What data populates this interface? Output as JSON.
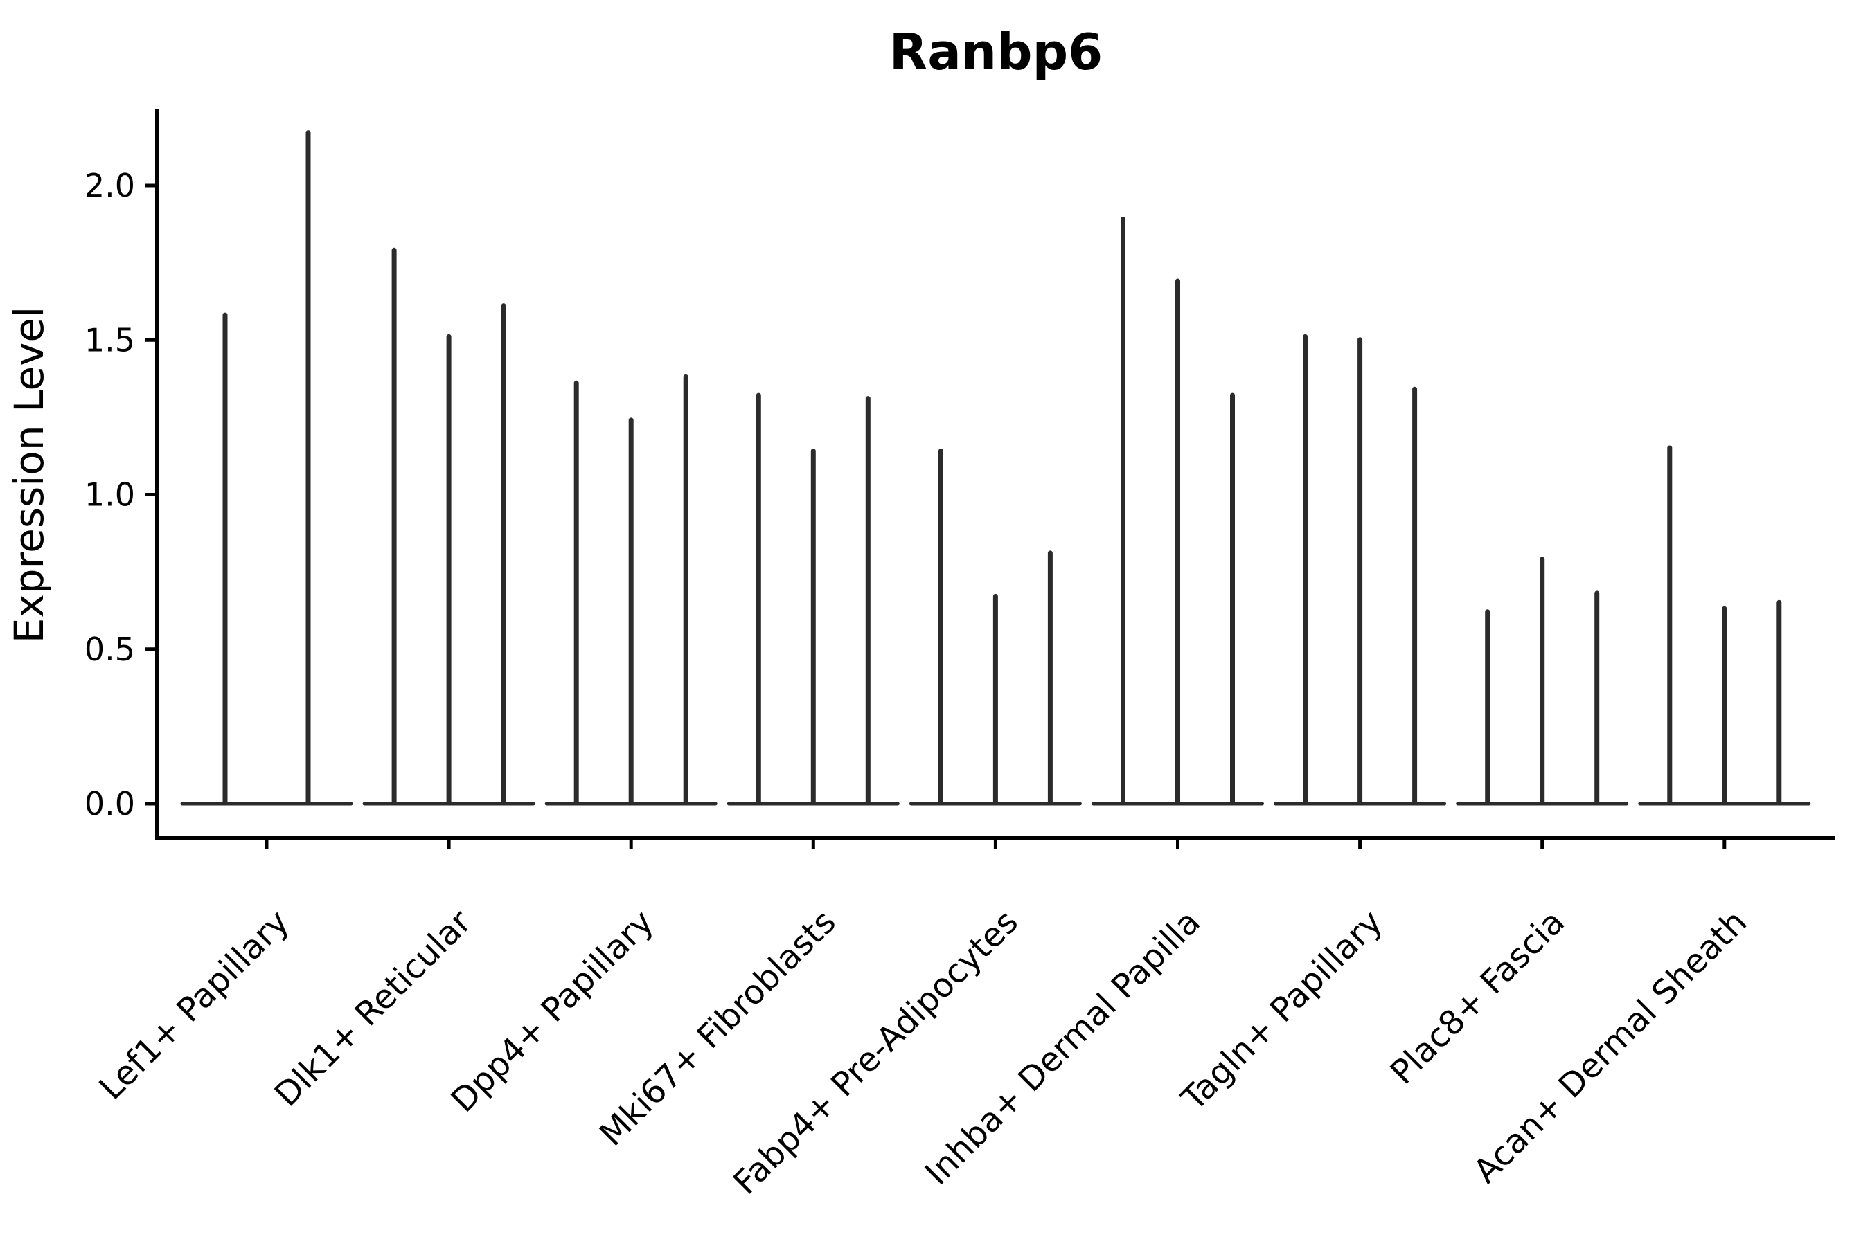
{
  "figure": {
    "title": "Ranbp6",
    "ylabel": "Expression Level"
  },
  "chart_data": {
    "type": "violin",
    "title": "Ranbp6",
    "xlabel": "",
    "ylabel": "Expression Level",
    "yticks": [
      "0.0",
      "0.5",
      "1.0",
      "1.5",
      "2.0"
    ],
    "ytick_values": [
      0.0,
      0.5,
      1.0,
      1.5,
      2.0
    ],
    "ylim": [
      -0.11,
      2.25
    ],
    "grid": false,
    "legend": "none",
    "background": "#ffffff",
    "violin_color": "#2b2b2b",
    "axis_color": "#000000",
    "shape_note": "needle violins: expression density concentrated at 0 (flat base line at y=0) with a thin vertical spike up to the max expression value",
    "categories": [
      "Lef1+ Papillary",
      "Dlk1+ Reticular",
      "Dpp4+ Papillary",
      "Mki67+ Fibroblasts",
      "Fabp4+ Pre-Adipocytes",
      "Inhba+ Dermal Papilla",
      "Tagln+ Papillary",
      "Plac8+ Fascia",
      "Acan+ Dermal Sheath"
    ],
    "series": [
      {
        "category": "Lef1+ Papillary",
        "violin_peaks": [
          1.59,
          2.18
        ],
        "baseline_value": 0.0
      },
      {
        "category": "Dlk1+ Reticular",
        "violin_peaks": [
          1.8,
          1.52,
          1.62
        ],
        "baseline_value": 0.0
      },
      {
        "category": "Dpp4+ Papillary",
        "violin_peaks": [
          1.37,
          1.25,
          1.39
        ],
        "baseline_value": 0.0
      },
      {
        "category": "Mki67+ Fibroblasts",
        "violin_peaks": [
          1.33,
          1.15,
          1.32
        ],
        "baseline_value": 0.0
      },
      {
        "category": "Fabp4+ Pre-Adipocytes",
        "violin_peaks": [
          1.15,
          0.68,
          0.82
        ],
        "baseline_value": 0.0
      },
      {
        "category": "Inhba+ Dermal Papilla",
        "violin_peaks": [
          1.9,
          1.7,
          1.33
        ],
        "baseline_value": 0.0
      },
      {
        "category": "Tagln+ Papillary",
        "violin_peaks": [
          1.52,
          1.51,
          1.35
        ],
        "baseline_value": 0.0
      },
      {
        "category": "Plac8+ Fascia",
        "violin_peaks": [
          0.63,
          0.8,
          0.69
        ],
        "baseline_value": 0.0
      },
      {
        "category": "Acan+ Dermal Sheath",
        "violin_peaks": [
          1.16,
          0.64,
          0.66
        ],
        "baseline_value": 0.0
      }
    ]
  }
}
